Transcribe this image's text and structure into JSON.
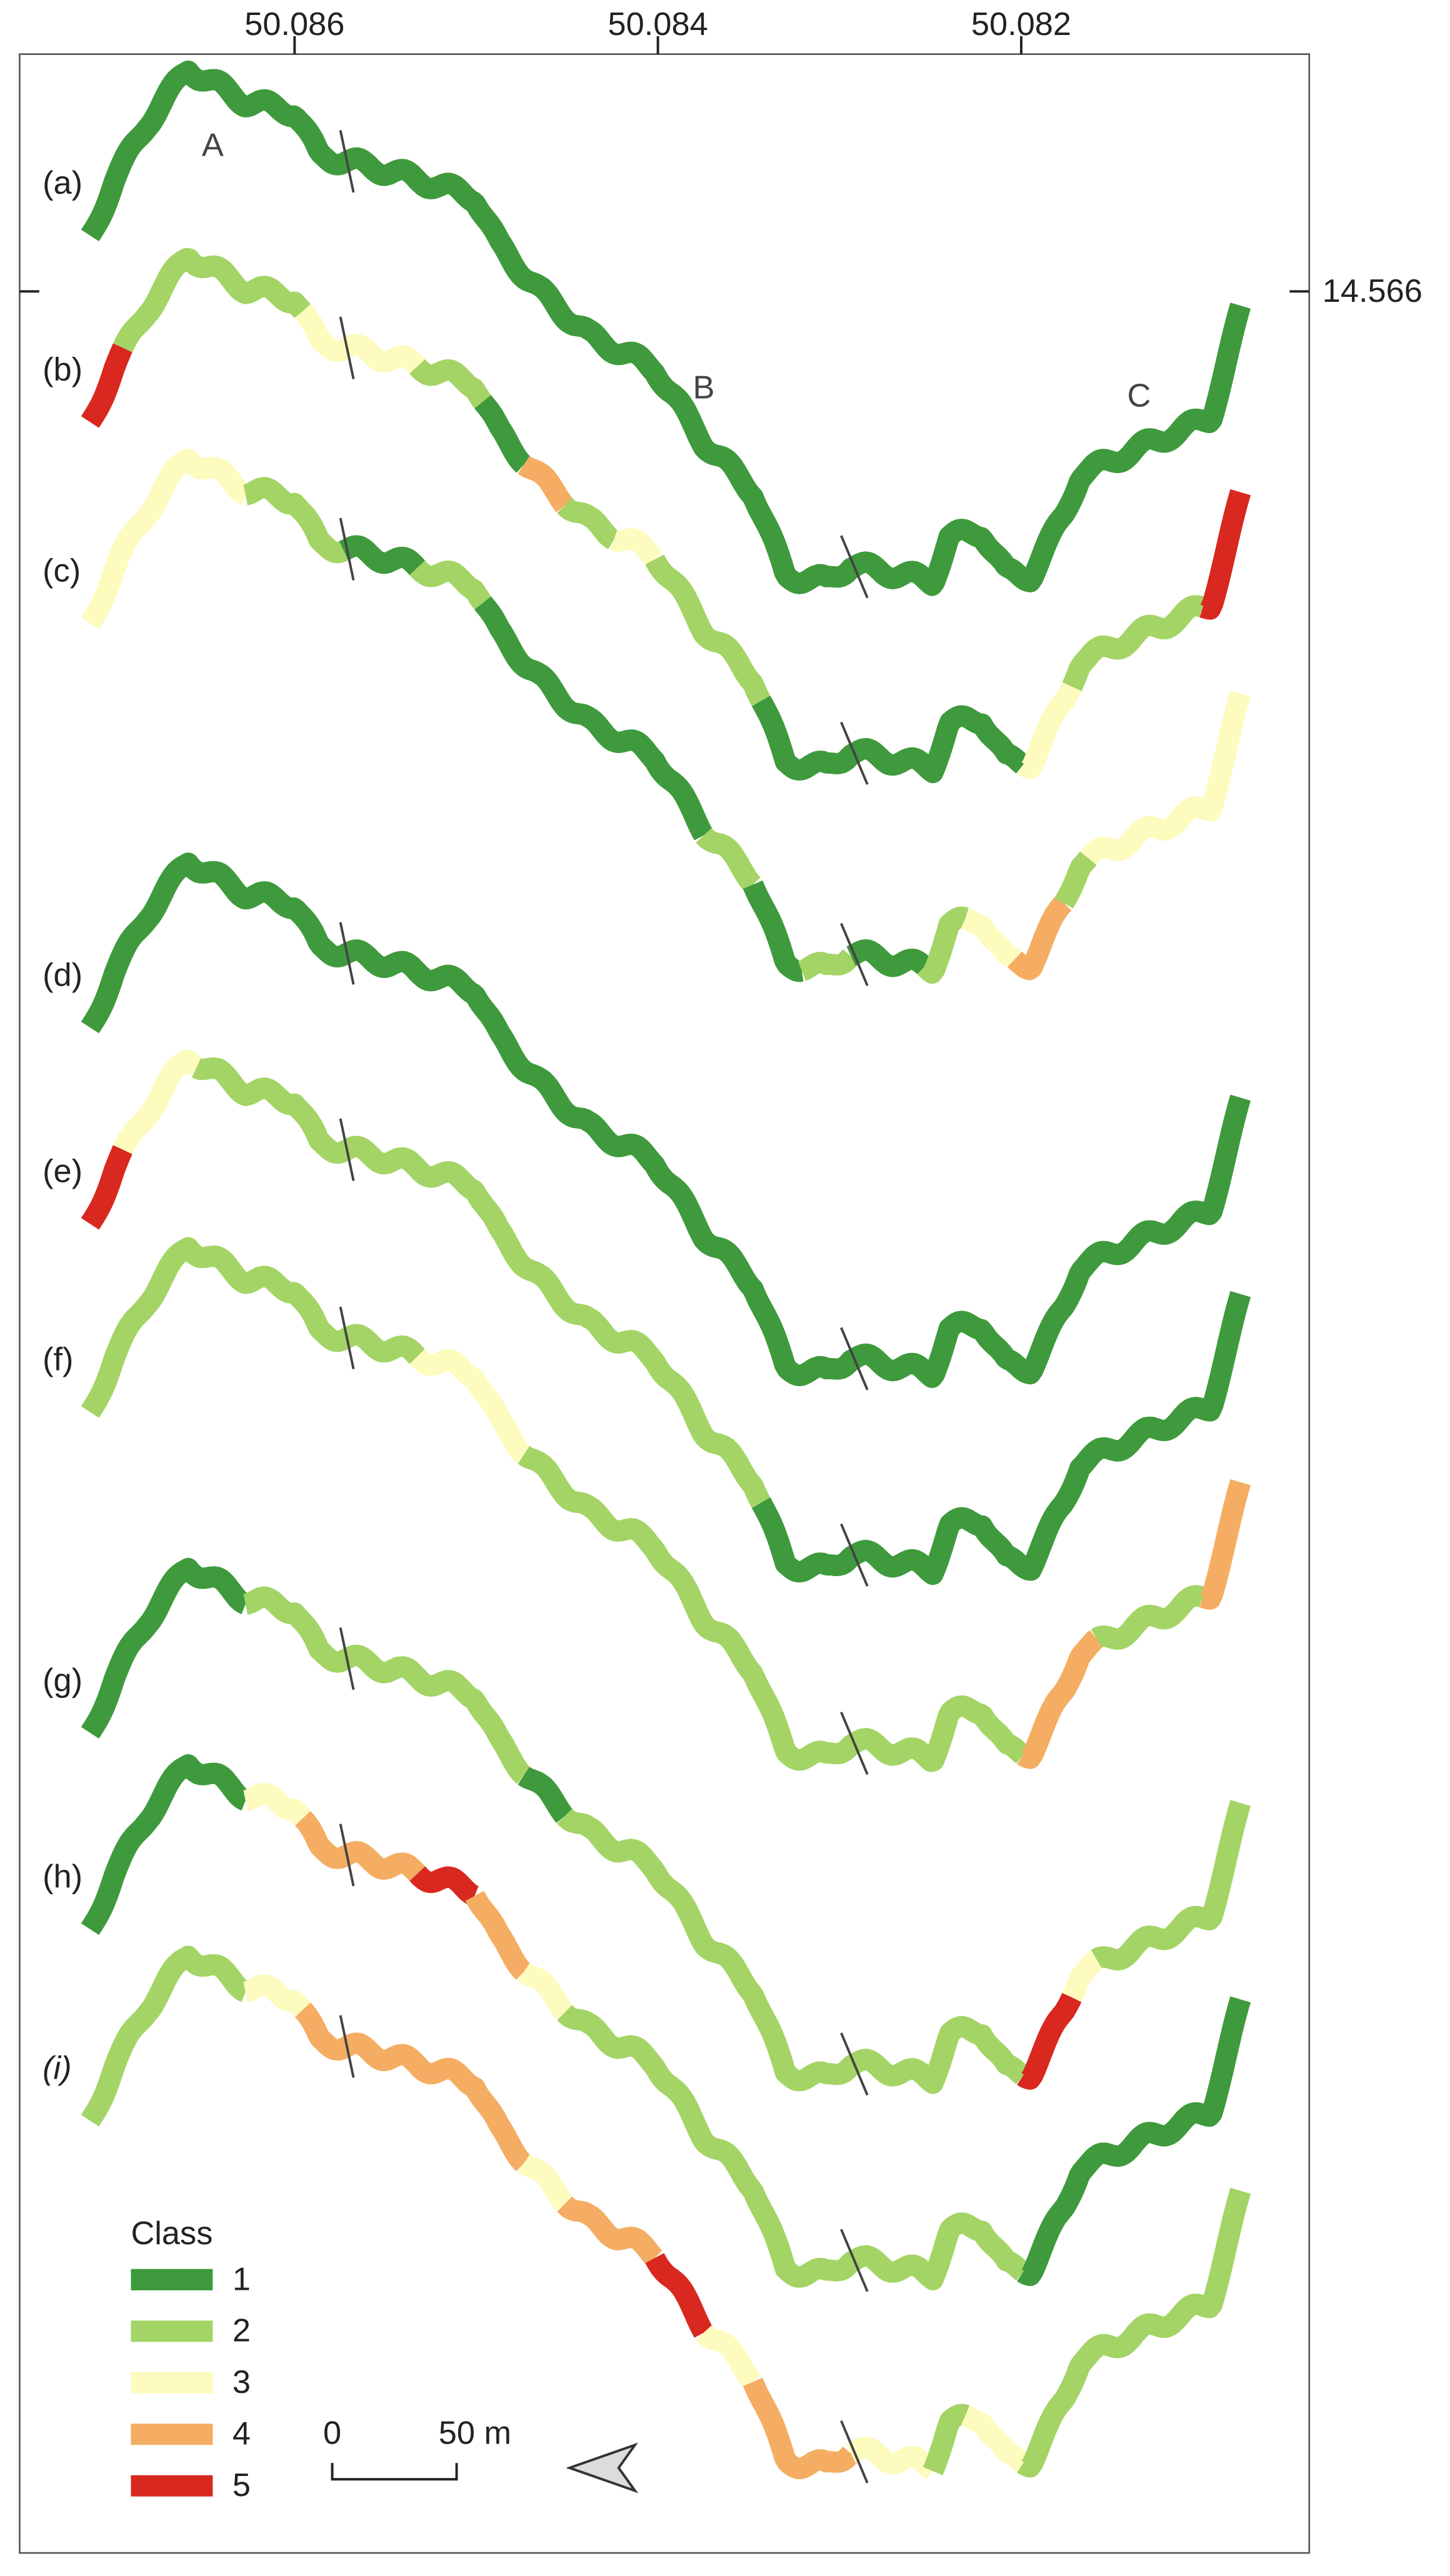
{
  "axis": {
    "top_ticks": [
      "50.086",
      "50.084",
      "50.082"
    ],
    "right_tick": "14.566"
  },
  "sites": [
    "A",
    "B",
    "C"
  ],
  "profiles": [
    {
      "label": "(a)",
      "classes": [
        1
      ]
    },
    {
      "label": "(b)",
      "classes": [
        5,
        2,
        3,
        2,
        1,
        4,
        2,
        3,
        2,
        1,
        3,
        2,
        5
      ]
    },
    {
      "label": "(c)",
      "classes": [
        3,
        2,
        1,
        2,
        1,
        2,
        1,
        2,
        1,
        2,
        3,
        4,
        2,
        3
      ]
    },
    {
      "label": "(d)",
      "classes": [
        1
      ]
    },
    {
      "label": "(e)",
      "classes": [
        5,
        3,
        2,
        1
      ]
    },
    {
      "label": "(f)",
      "classes": [
        2,
        3,
        2,
        4,
        2,
        4
      ]
    },
    {
      "label": "(g)",
      "classes": [
        1,
        2,
        1,
        2,
        5,
        3,
        2
      ]
    },
    {
      "label": "(h)",
      "classes": [
        1,
        3,
        4,
        5,
        4,
        3,
        2,
        1
      ]
    },
    {
      "label": "(i)",
      "classes": [
        2,
        3,
        4,
        3,
        4,
        5,
        3,
        4,
        3,
        2,
        3,
        2
      ]
    }
  ],
  "legend": {
    "title": "Class",
    "classes": [
      {
        "class": 1,
        "color": "#3e9a3c"
      },
      {
        "class": 2,
        "color": "#a3d465"
      },
      {
        "class": 3,
        "color": "#fdfbbd"
      },
      {
        "class": 4,
        "color": "#f4ad62"
      },
      {
        "class": 5,
        "color": "#d8281f"
      }
    ]
  },
  "scale": {
    "start": "0",
    "end": "50 m"
  }
}
